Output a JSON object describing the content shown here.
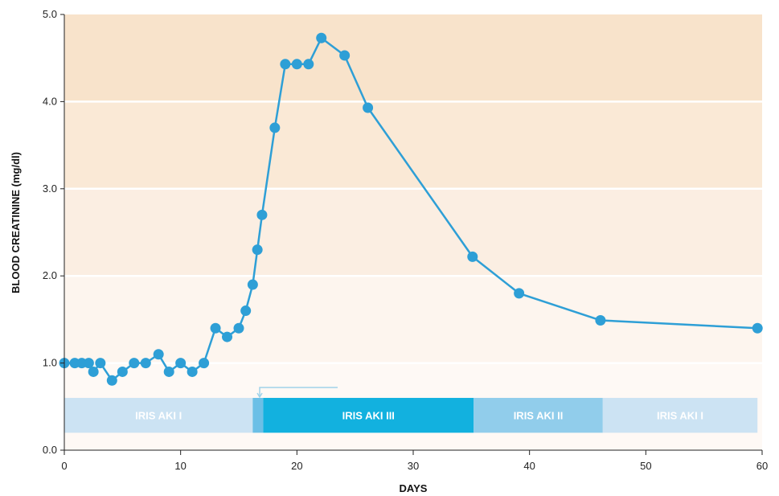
{
  "chart_data": {
    "type": "line",
    "xlabel": "DAYS",
    "ylabel": "BLOOD CREATININE (mg/dl)",
    "xlim": [
      0,
      60
    ],
    "ylim": [
      0,
      5
    ],
    "x_ticks": [
      0,
      10,
      20,
      30,
      40,
      50,
      60
    ],
    "x_tick_labels": [
      "0",
      "10",
      "20",
      "30",
      "40",
      "50",
      "60"
    ],
    "y_ticks": [
      0,
      1,
      2,
      3,
      4,
      5
    ],
    "y_tick_labels": [
      "0.0",
      "1.0",
      "2.0",
      "3.0",
      "4.0",
      "5.0"
    ],
    "grid": "horizontal",
    "background_bands": [
      {
        "from": 4.0,
        "to": 5.0,
        "color": "#f8e3cb"
      },
      {
        "from": 3.0,
        "to": 4.0,
        "color": "#fae9d6"
      },
      {
        "from": 2.0,
        "to": 3.0,
        "color": "#fbeee2"
      },
      {
        "from": 1.0,
        "to": 2.0,
        "color": "#fdf5ee"
      },
      {
        "from": 0.0,
        "to": 1.0,
        "color": "#fef9f5"
      }
    ],
    "series": [
      {
        "color": "#2e9fd6",
        "x": [
          0,
          0.9,
          1.5,
          2.1,
          2.5,
          3.1,
          4.1,
          5.0,
          6.0,
          7.0,
          8.1,
          9.0,
          10.0,
          11.0,
          12.0,
          13.0,
          14.0,
          15.0,
          15.6,
          16.2,
          16.6,
          17.0,
          18.1,
          19.0,
          20.0,
          21.0,
          22.1,
          24.1,
          26.1,
          35.1,
          39.1,
          46.1,
          59.6
        ],
        "y": [
          1.0,
          1.0,
          1.0,
          1.0,
          0.9,
          1.0,
          0.8,
          0.9,
          1.0,
          1.0,
          1.1,
          0.9,
          1.0,
          0.9,
          1.0,
          1.4,
          1.3,
          1.4,
          1.6,
          1.9,
          2.3,
          2.7,
          3.7,
          4.43,
          4.43,
          4.43,
          4.73,
          4.53,
          3.93,
          2.22,
          1.8,
          1.49,
          1.4
        ]
      }
    ],
    "stages": [
      {
        "label": "IRIS AKI I",
        "x_start": 0,
        "x_end": 16.2,
        "color": "#cce3f3"
      },
      {
        "label": "",
        "x_start": 16.2,
        "x_end": 17.1,
        "color": "#6bbfe6"
      },
      {
        "label": "IRIS AKI III",
        "x_start": 17.1,
        "x_end": 35.2,
        "color": "#12b1df"
      },
      {
        "label": "IRIS AKI II",
        "x_start": 35.2,
        "x_end": 46.3,
        "color": "#91cdeb"
      },
      {
        "label": "IRIS AKI I",
        "x_start": 46.3,
        "x_end": 59.6,
        "color": "#cce3f3"
      }
    ],
    "stage_band_y": [
      0.2,
      0.6
    ],
    "stage_bracket": {
      "x_start": 16.8,
      "x_end": 23.5,
      "y": 0.72,
      "color": "#9fd3ea"
    }
  }
}
